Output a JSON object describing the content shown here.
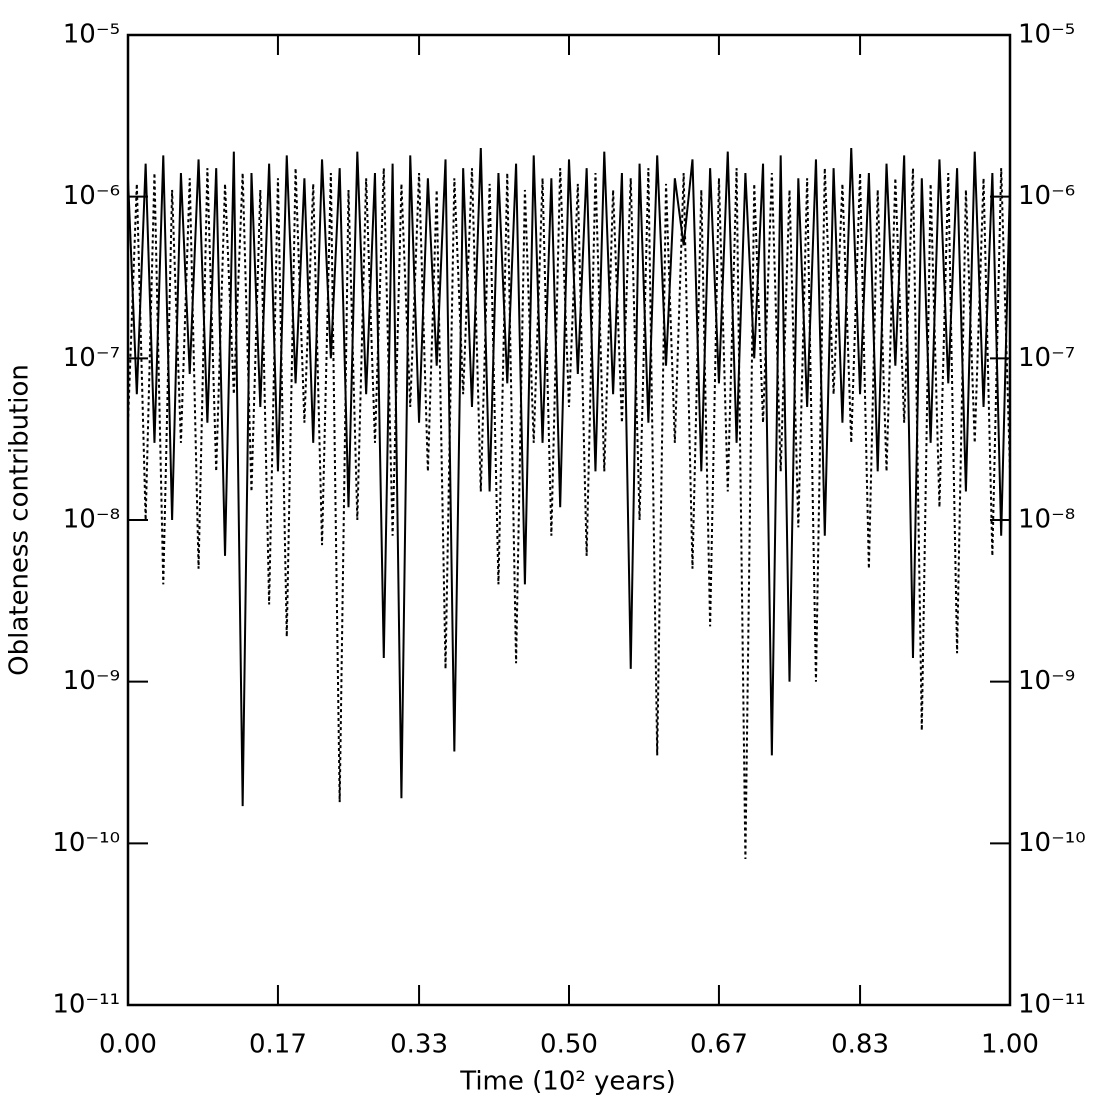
{
  "chart_data": {
    "type": "line",
    "x_label": "Time (10² years)",
    "y_label": "Oblateness contribution",
    "log_y": true,
    "xlim": [
      0,
      1
    ],
    "xticks": [
      {
        "value": 0,
        "label": "0.00"
      },
      0.17,
      0.33,
      {
        "value": 0.5,
        "label": "0.50"
      },
      0.67,
      0.83,
      {
        "value": 1,
        "label": "1.00"
      }
    ],
    "ylim": [
      1e-11,
      1e-05
    ],
    "yticks": [
      {
        "value": 1e-11,
        "label": "10⁻¹¹"
      },
      {
        "value": 1e-10,
        "label": "10⁻¹⁰"
      },
      {
        "value": 1e-09,
        "label": "10⁻⁹"
      },
      {
        "value": 1e-08,
        "label": "10⁻⁸"
      },
      {
        "value": 1e-07,
        "label": "10⁻⁷"
      },
      {
        "value": 1e-06,
        "label": "10⁻⁶"
      },
      {
        "value": 1e-05,
        "label": "10⁻⁵"
      }
    ],
    "y2lim": [
      1e-11,
      1e-05
    ],
    "y2ticks": [
      {
        "value": 1e-11,
        "label": "10⁻¹¹"
      },
      {
        "value": 1e-10,
        "label": "10⁻¹⁰"
      },
      {
        "value": 1e-09,
        "label": "10⁻⁹"
      },
      {
        "value": 1e-08,
        "label": "10⁻⁸"
      },
      {
        "value": 1e-07,
        "label": "10⁻⁷"
      },
      {
        "value": 1e-06,
        "label": "10⁻⁶"
      },
      {
        "value": 1e-05,
        "label": "10⁻⁵"
      }
    ],
    "x": [
      0,
      0.01,
      0.02,
      0.03,
      0.04,
      0.05,
      0.06,
      0.07,
      0.08,
      0.09,
      0.1,
      0.11,
      0.12,
      0.13,
      0.14,
      0.15,
      0.16,
      0.17,
      0.18,
      0.19,
      0.2,
      0.21,
      0.22,
      0.23,
      0.24,
      0.25,
      0.26,
      0.27,
      0.28,
      0.29,
      0.3,
      0.31,
      0.32,
      0.33,
      0.34,
      0.35,
      0.36,
      0.37,
      0.38,
      0.39,
      0.4,
      0.41,
      0.42,
      0.43,
      0.44,
      0.45,
      0.46,
      0.47,
      0.48,
      0.49,
      0.5,
      0.51,
      0.52,
      0.53,
      0.54,
      0.55,
      0.56,
      0.57,
      0.58,
      0.59,
      0.6,
      0.61,
      0.62,
      0.63,
      0.64,
      0.65,
      0.66,
      0.67,
      0.68,
      0.69,
      0.7,
      0.71,
      0.72,
      0.73,
      0.74,
      0.75,
      0.76,
      0.77,
      0.78,
      0.79,
      0.8,
      0.81,
      0.82,
      0.83,
      0.84,
      0.85,
      0.86,
      0.87,
      0.88,
      0.89,
      0.9,
      0.91,
      0.92,
      0.93,
      0.94,
      0.95,
      0.96,
      0.97,
      0.98,
      0.99,
      1
    ],
    "series": [
      {
        "color": "#000000",
        "line_style": "solid",
        "values": [
          1.3e-06,
          6e-08,
          1.6e-06,
          3e-08,
          1.8e-06,
          1e-08,
          1.4e-06,
          8e-08,
          1.7e-06,
          4e-08,
          1.5e-06,
          6e-09,
          1.9e-06,
          1.7e-10,
          1.4e-06,
          5e-08,
          1.6e-06,
          2e-08,
          1.8e-06,
          7e-08,
          1.3e-06,
          3e-08,
          1.7e-06,
          1e-07,
          1.5e-06,
          1.2e-08,
          1.9e-06,
          6e-08,
          1.4e-06,
          1.4e-09,
          1.6e-06,
          1.9e-10,
          1.8e-06,
          4e-08,
          1.3e-06,
          9e-08,
          1.7e-06,
          3.7e-10,
          1.5e-06,
          5e-08,
          2e-06,
          1.5e-08,
          1.4e-06,
          7e-08,
          1.6e-06,
          4e-09,
          1.8e-06,
          3e-08,
          1.3e-06,
          1.2e-08,
          1.7e-06,
          8e-08,
          1.5e-06,
          2e-08,
          1.9e-06,
          6e-08,
          1.4e-06,
          1.2e-09,
          1.6e-06,
          4e-08,
          1.8e-06,
          9e-08,
          1.3e-06,
          5e-07,
          1.7e-06,
          2e-08,
          1.5e-06,
          7e-08,
          1.9e-06,
          3e-08,
          1.4e-06,
          1e-07,
          1.6e-06,
          3.5e-10,
          1.8e-06,
          1e-09,
          1.3e-06,
          5e-08,
          1.7e-06,
          8e-09,
          1.5e-06,
          4e-08,
          2e-06,
          6e-08,
          1.4e-06,
          2e-08,
          1.6e-06,
          9e-08,
          1.8e-06,
          1.4e-09,
          1.3e-06,
          3e-08,
          1.7e-06,
          7e-08,
          1.5e-06,
          1.5e-08,
          1.9e-06,
          5e-08,
          1.4e-06,
          8e-09,
          1.2e-06
        ]
      },
      {
        "color": "#000000",
        "line_style": "dotted",
        "values": [
          4e-08,
          1.2e-06,
          1e-08,
          1.4e-06,
          4e-09,
          1.1e-06,
          3e-08,
          1.3e-06,
          5e-09,
          1.5e-06,
          2e-08,
          1.2e-06,
          6e-08,
          1.4e-06,
          1.5e-08,
          1.1e-06,
          3e-09,
          1.3e-06,
          1.9e-09,
          1.5e-06,
          4e-08,
          1.2e-06,
          7e-09,
          1.4e-06,
          1.8e-10,
          1.1e-06,
          1e-08,
          1.3e-06,
          3e-08,
          1.5e-06,
          8e-09,
          1.2e-06,
          5e-08,
          1.4e-06,
          2e-08,
          1.1e-06,
          1.2e-09,
          1.3e-06,
          6e-08,
          1.5e-06,
          1.5e-08,
          1.2e-06,
          4e-09,
          1.4e-06,
          1.3e-09,
          1.1e-06,
          3e-08,
          1.3e-06,
          8e-09,
          1.5e-06,
          5e-08,
          1.2e-06,
          6e-09,
          1.4e-06,
          2e-08,
          1.1e-06,
          4e-08,
          1.3e-06,
          1e-08,
          1.5e-06,
          3.5e-10,
          1.2e-06,
          3e-08,
          1.4e-06,
          5e-09,
          1.1e-06,
          2.2e-09,
          1.3e-06,
          1.5e-08,
          1.5e-06,
          8e-11,
          1.2e-06,
          4e-08,
          1.4e-06,
          2e-08,
          1.1e-06,
          9e-09,
          1.3e-06,
          1e-09,
          1.5e-06,
          6e-08,
          1.2e-06,
          3e-08,
          1.4e-06,
          5e-09,
          1.1e-06,
          2e-08,
          1.3e-06,
          4e-08,
          1.5e-06,
          5e-10,
          1.2e-06,
          1.2e-08,
          1.4e-06,
          1.5e-09,
          1.1e-06,
          3e-08,
          1.3e-06,
          6e-09,
          1.5e-06,
          2e-08
        ]
      }
    ]
  }
}
